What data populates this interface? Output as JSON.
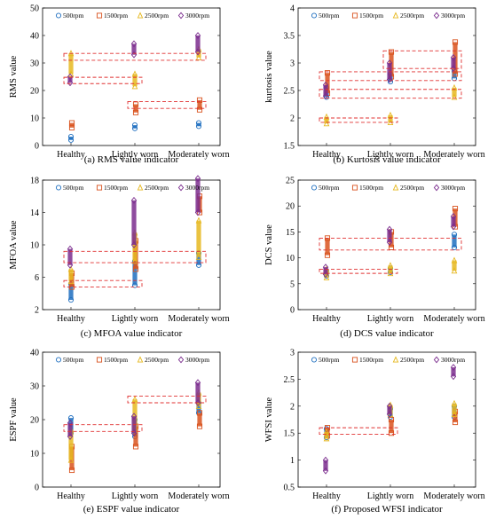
{
  "legend_labels": [
    "500rpm",
    "1500rpm",
    "2500rpm",
    "3000rpm"
  ],
  "colors": {
    "500rpm": "#1f6fc0",
    "1500rpm": "#d9531e",
    "2500rpm": "#e6b820",
    "3000rpm": "#7b2d8e",
    "highlight": "#e03030"
  },
  "chart_data": [
    {
      "id": "a",
      "type": "scatter",
      "caption": "(a) RMS value indicator",
      "ylabel": "RMS value",
      "xlabel": "",
      "categories": [
        "Healthy",
        "Lightly worn",
        "Moderately worn"
      ],
      "ylim": [
        0,
        50
      ],
      "yticks": [
        0,
        10,
        20,
        30,
        40,
        50
      ],
      "legend_placement": "top",
      "series": [
        {
          "name": "500rpm",
          "marker": "circle",
          "ranges": [
            [
              2,
              3.2
            ],
            [
              6.2,
              7.4
            ],
            [
              7,
              8.2
            ]
          ]
        },
        {
          "name": "1500rpm",
          "marker": "square",
          "ranges": [
            [
              6.5,
              8.2
            ],
            [
              12,
              15
            ],
            [
              13,
              16.5
            ]
          ]
        },
        {
          "name": "2500rpm",
          "marker": "triangle",
          "ranges": [
            [
              26,
              33.5
            ],
            [
              21.5,
              26
            ],
            [
              32,
              35
            ]
          ]
        },
        {
          "name": "3000rpm",
          "marker": "diamond",
          "ranges": [
            [
              22.8,
              25
            ],
            [
              33,
              37
            ],
            [
              34,
              40
            ]
          ]
        }
      ],
      "highlight_boxes": [
        {
          "from": 0,
          "to": 2,
          "y": [
            31,
            33.5
          ]
        },
        {
          "from": 0,
          "to": 1,
          "y": [
            22.5,
            24.8
          ]
        },
        {
          "from": 1,
          "to": 2,
          "y": [
            13.5,
            16
          ]
        }
      ]
    },
    {
      "id": "b",
      "type": "scatter",
      "caption": "(b) Kurtosis value indicator",
      "ylabel": "kurtosis value",
      "xlabel": "",
      "categories": [
        "Healthy",
        "Lightly worn",
        "Moderately worn"
      ],
      "ylim": [
        1.5,
        4
      ],
      "yticks": [
        1.5,
        2,
        2.5,
        3,
        3.5,
        4
      ],
      "legend_placement": "top",
      "series": [
        {
          "name": "500rpm",
          "marker": "circle",
          "ranges": [
            [
              2.38,
              2.55
            ],
            [
              2.66,
              2.8
            ],
            [
              2.72,
              2.85
            ]
          ]
        },
        {
          "name": "1500rpm",
          "marker": "square",
          "ranges": [
            [
              2.45,
              2.82
            ],
            [
              2.75,
              3.2
            ],
            [
              2.8,
              3.38
            ]
          ]
        },
        {
          "name": "2500rpm",
          "marker": "triangle",
          "ranges": [
            [
              1.9,
              2.02
            ],
            [
              1.92,
              2.05
            ],
            [
              2.38,
              2.55
            ]
          ]
        },
        {
          "name": "3000rpm",
          "marker": "diamond",
          "ranges": [
            [
              2.4,
              2.6
            ],
            [
              2.7,
              3.0
            ],
            [
              2.9,
              3.1
            ]
          ]
        }
      ],
      "highlight_boxes": [
        {
          "from": 0,
          "to": 2,
          "y": [
            2.68,
            2.84
          ]
        },
        {
          "from": 0,
          "to": 2,
          "y": [
            2.36,
            2.52
          ]
        },
        {
          "from": 0,
          "to": 1,
          "y": [
            1.92,
            2.0
          ]
        },
        {
          "from": 1,
          "to": 2,
          "y": [
            2.9,
            3.22
          ]
        }
      ]
    },
    {
      "id": "c",
      "type": "scatter",
      "caption": "(c) MFOA value indicator",
      "ylabel": "MFOA value",
      "xlabel": "",
      "categories": [
        "Healthy",
        "Lightly worn",
        "Moderately worn"
      ],
      "ylim": [
        2,
        18
      ],
      "yticks": [
        2,
        6,
        10,
        14,
        18
      ],
      "legend_placement": "top",
      "series": [
        {
          "name": "500rpm",
          "marker": "circle",
          "ranges": [
            [
              3.2,
              5.2
            ],
            [
              5,
              8
            ],
            [
              7.5,
              9
            ]
          ]
        },
        {
          "name": "1500rpm",
          "marker": "square",
          "ranges": [
            [
              4.8,
              6.5
            ],
            [
              7,
              10.5
            ],
            [
              14,
              16
            ]
          ]
        },
        {
          "name": "2500rpm",
          "marker": "triangle",
          "ranges": [
            [
              5.5,
              7
            ],
            [
              8,
              11.5
            ],
            [
              8.5,
              13
            ]
          ]
        },
        {
          "name": "3000rpm",
          "marker": "diamond",
          "ranges": [
            [
              7.5,
              9.5
            ],
            [
              10,
              15.5
            ],
            [
              14,
              18.2
            ]
          ]
        }
      ],
      "highlight_boxes": [
        {
          "from": 0,
          "to": 2,
          "y": [
            7.8,
            9.2
          ]
        },
        {
          "from": 0,
          "to": 1,
          "y": [
            4.8,
            5.6
          ]
        }
      ]
    },
    {
      "id": "d",
      "type": "scatter",
      "caption": "(d) DCS value indicator",
      "ylabel": "DCS value",
      "xlabel": "",
      "categories": [
        "Healthy",
        "Lightly worn",
        "Moderately worn"
      ],
      "ylim": [
        0,
        25
      ],
      "yticks": [
        0,
        5,
        10,
        15,
        20,
        25
      ],
      "legend_placement": "top",
      "series": [
        {
          "name": "500rpm",
          "marker": "circle",
          "ranges": [
            [
              6.5,
              7.5
            ],
            [
              7.2,
              8
            ],
            [
              12,
              14.5
            ]
          ]
        },
        {
          "name": "1500rpm",
          "marker": "square",
          "ranges": [
            [
              10.5,
              13.8
            ],
            [
              12,
              15
            ],
            [
              16,
              19.5
            ]
          ]
        },
        {
          "name": "2500rpm",
          "marker": "triangle",
          "ranges": [
            [
              6.2,
              7.8
            ],
            [
              7,
              8.5
            ],
            [
              7.5,
              9.5
            ]
          ]
        },
        {
          "name": "3000rpm",
          "marker": "diamond",
          "ranges": [
            [
              6.8,
              8.2
            ],
            [
              13,
              15.5
            ],
            [
              16,
              18
            ]
          ]
        }
      ],
      "highlight_boxes": [
        {
          "from": 0,
          "to": 2,
          "y": [
            11.5,
            13.8
          ]
        },
        {
          "from": 0,
          "to": 1,
          "y": [
            7,
            7.8
          ]
        }
      ]
    },
    {
      "id": "e",
      "type": "scatter",
      "caption": "(e) ESPF value indicator",
      "ylabel": "ESPF value",
      "xlabel": "",
      "categories": [
        "Healthy",
        "Lightly worn",
        "Moderately worn"
      ],
      "ylim": [
        0,
        40
      ],
      "yticks": [
        0,
        10,
        20,
        30,
        40
      ],
      "legend_placement": "top",
      "series": [
        {
          "name": "500rpm",
          "marker": "circle",
          "ranges": [
            [
              16,
              20.5
            ],
            [
              15,
              20
            ],
            [
              22,
              25
            ]
          ]
        },
        {
          "name": "1500rpm",
          "marker": "square",
          "ranges": [
            [
              5,
              12
            ],
            [
              12,
              18
            ],
            [
              18,
              22
            ]
          ]
        },
        {
          "name": "2500rpm",
          "marker": "triangle",
          "ranges": [
            [
              8,
              17
            ],
            [
              17,
              26
            ],
            [
              24,
              28
            ]
          ]
        },
        {
          "name": "3000rpm",
          "marker": "diamond",
          "ranges": [
            [
              15,
              19
            ],
            [
              16,
              21
            ],
            [
              25,
              31
            ]
          ]
        }
      ],
      "highlight_boxes": [
        {
          "from": 0,
          "to": 1,
          "y": [
            16.5,
            18.5
          ]
        },
        {
          "from": 1,
          "to": 2,
          "y": [
            25,
            27
          ]
        }
      ]
    },
    {
      "id": "f",
      "type": "scatter",
      "caption": "(f) Proposed WFSI indicator",
      "ylabel": "WFSI value",
      "xlabel": "",
      "categories": [
        "Healthy",
        "Lightly worn",
        "Moderately worn"
      ],
      "ylim": [
        0.5,
        3
      ],
      "yticks": [
        0.5,
        1,
        1.5,
        2,
        2.5,
        3
      ],
      "legend_placement": "top",
      "series": [
        {
          "name": "500rpm",
          "marker": "circle",
          "ranges": [
            [
              1.42,
              1.58
            ],
            [
              1.8,
              1.95
            ],
            [
              1.8,
              2.0
            ]
          ]
        },
        {
          "name": "1500rpm",
          "marker": "square",
          "ranges": [
            [
              1.45,
              1.6
            ],
            [
              1.5,
              1.75
            ],
            [
              1.7,
              1.9
            ]
          ]
        },
        {
          "name": "2500rpm",
          "marker": "triangle",
          "ranges": [
            [
              1.4,
              1.52
            ],
            [
              1.85,
              2.02
            ],
            [
              1.85,
              2.05
            ]
          ]
        },
        {
          "name": "3000rpm",
          "marker": "diamond",
          "ranges": [
            [
              0.8,
              1.0
            ],
            [
              1.85,
              2.0
            ],
            [
              2.55,
              2.72
            ]
          ]
        }
      ],
      "highlight_boxes": [
        {
          "from": 0,
          "to": 1,
          "y": [
            1.48,
            1.6
          ]
        }
      ]
    }
  ]
}
